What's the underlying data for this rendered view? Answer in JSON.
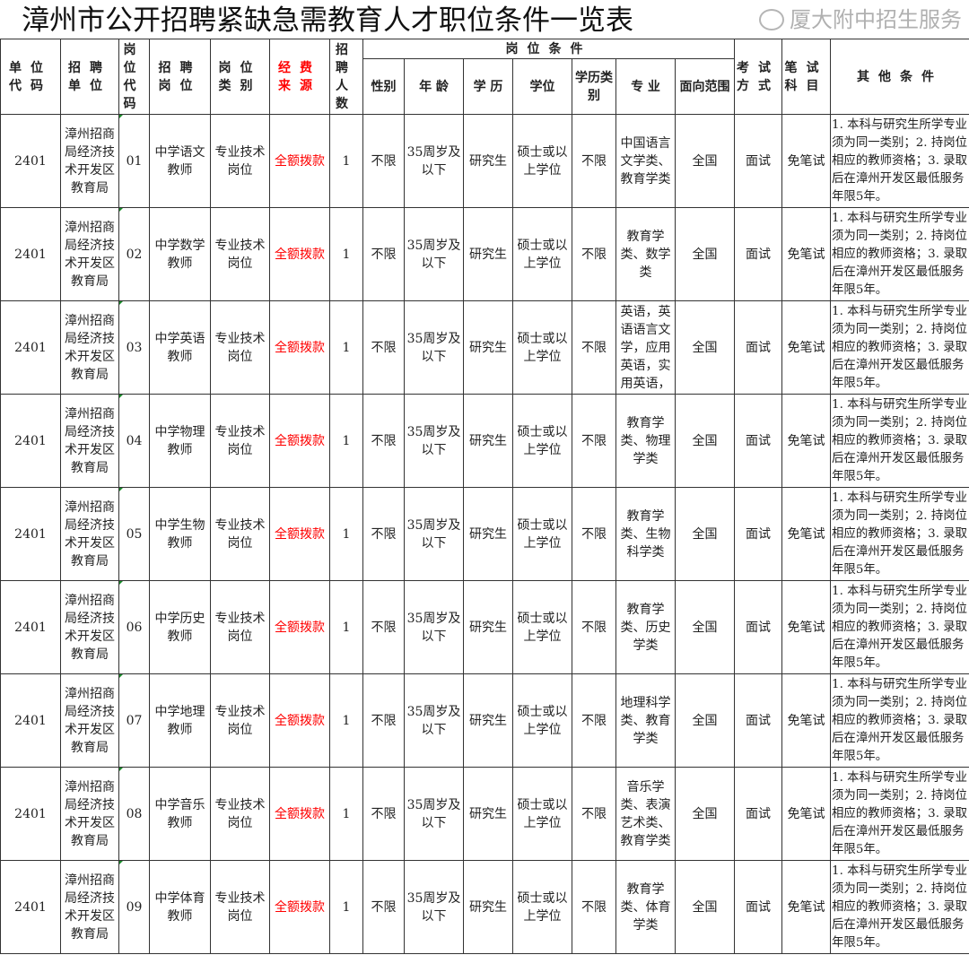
{
  "title": "漳州市公开招聘紧缺急需教育人才职位条件一览表",
  "headers": {
    "unit_code": "单位代码",
    "unit": "招聘单位",
    "post_code": "岗位代码",
    "post": "招聘岗位",
    "post_type": "岗位类别",
    "funding": "经费来源",
    "count": "招聘人数",
    "conditions_group": "岗位条件",
    "gender": "性别",
    "age": "年 龄",
    "education": "学 历",
    "degree": "学位",
    "edu_type": "学历类别",
    "major": "专 业",
    "scope": "面向范围",
    "exam": "考试方式",
    "written": "笔试科目",
    "other": "其他条件"
  },
  "rows": [
    {
      "unit_code": "2401",
      "unit": "漳州招商局经济技术开发区教育局",
      "post_code": "01",
      "post": "中学语文教师",
      "post_type": "专业技术岗位",
      "funding": "全额拨款",
      "count": "1",
      "gender": "不限",
      "age": "35周岁及以下",
      "education": "研究生",
      "degree": "硕士或以上学位",
      "edu_type": "不限",
      "major": "中国语言文学类、教育学类",
      "scope": "全国",
      "exam": "面试",
      "written": "免笔试",
      "other": "1. 本科与研究生所学专业须为同一类别；2. 持岗位相应的教师资格；3. 录取后在漳州开发区最低服务年限5年。"
    },
    {
      "unit_code": "2401",
      "unit": "漳州招商局经济技术开发区教育局",
      "post_code": "02",
      "post": "中学数学教师",
      "post_type": "专业技术岗位",
      "funding": "全额拨款",
      "count": "1",
      "gender": "不限",
      "age": "35周岁及以下",
      "education": "研究生",
      "degree": "硕士或以上学位",
      "edu_type": "不限",
      "major": "教育学类、数学类",
      "scope": "全国",
      "exam": "面试",
      "written": "免笔试",
      "other": "1. 本科与研究生所学专业须为同一类别；2. 持岗位相应的教师资格；3. 录取后在漳州开发区最低服务年限5年。"
    },
    {
      "unit_code": "2401",
      "unit": "漳州招商局经济技术开发区教育局",
      "post_code": "03",
      "post": "中学英语教师",
      "post_type": "专业技术岗位",
      "funding": "全额拨款",
      "count": "1",
      "gender": "不限",
      "age": "35周岁及以下",
      "education": "研究生",
      "degree": "硕士或以上学位",
      "edu_type": "不限",
      "major": "英语，英语语言文学，应用英语，实用英语，",
      "scope": "全国",
      "exam": "面试",
      "written": "免笔试",
      "other": "1. 本科与研究生所学专业须为同一类别；2. 持岗位相应的教师资格；3. 录取后在漳州开发区最低服务年限5年。"
    },
    {
      "unit_code": "2401",
      "unit": "漳州招商局经济技术开发区教育局",
      "post_code": "04",
      "post": "中学物理教师",
      "post_type": "专业技术岗位",
      "funding": "全额拨款",
      "count": "1",
      "gender": "不限",
      "age": "35周岁及以下",
      "education": "研究生",
      "degree": "硕士或以上学位",
      "edu_type": "不限",
      "major": "教育学类、物理学类",
      "scope": "全国",
      "exam": "面试",
      "written": "免笔试",
      "other": "1. 本科与研究生所学专业须为同一类别；2. 持岗位相应的教师资格；3. 录取后在漳州开发区最低服务年限5年。"
    },
    {
      "unit_code": "2401",
      "unit": "漳州招商局经济技术开发区教育局",
      "post_code": "05",
      "post": "中学生物教师",
      "post_type": "专业技术岗位",
      "funding": "全额拨款",
      "count": "1",
      "gender": "不限",
      "age": "35周岁及以下",
      "education": "研究生",
      "degree": "硕士或以上学位",
      "edu_type": "不限",
      "major": "教育学类、生物科学类",
      "scope": "全国",
      "exam": "面试",
      "written": "免笔试",
      "other": "1. 本科与研究生所学专业须为同一类别；2. 持岗位相应的教师资格；3. 录取后在漳州开发区最低服务年限5年。"
    },
    {
      "unit_code": "2401",
      "unit": "漳州招商局经济技术开发区教育局",
      "post_code": "06",
      "post": "中学历史教师",
      "post_type": "专业技术岗位",
      "funding": "全额拨款",
      "count": "1",
      "gender": "不限",
      "age": "35周岁及以下",
      "education": "研究生",
      "degree": "硕士或以上学位",
      "edu_type": "不限",
      "major": "教育学类、历史学类",
      "scope": "全国",
      "exam": "面试",
      "written": "免笔试",
      "other": "1. 本科与研究生所学专业须为同一类别；2. 持岗位相应的教师资格；3. 录取后在漳州开发区最低服务年限5年。"
    },
    {
      "unit_code": "2401",
      "unit": "漳州招商局经济技术开发区教育局",
      "post_code": "07",
      "post": "中学地理教师",
      "post_type": "专业技术岗位",
      "funding": "全额拨款",
      "count": "1",
      "gender": "不限",
      "age": "35周岁及以下",
      "education": "研究生",
      "degree": "硕士或以上学位",
      "edu_type": "不限",
      "major": "地理科学类、教育学类",
      "scope": "全国",
      "exam": "面试",
      "written": "免笔试",
      "other": "1. 本科与研究生所学专业须为同一类别；2. 持岗位相应的教师资格；3. 录取后在漳州开发区最低服务年限5年。"
    },
    {
      "unit_code": "2401",
      "unit": "漳州招商局经济技术开发区教育局",
      "post_code": "08",
      "post": "中学音乐教师",
      "post_type": "专业技术岗位",
      "funding": "全额拨款",
      "count": "1",
      "gender": "不限",
      "age": "35周岁及以下",
      "education": "研究生",
      "degree": "硕士或以上学位",
      "edu_type": "不限",
      "major": "音乐学类、表演艺术类、教育学类",
      "scope": "全国",
      "exam": "面试",
      "written": "免笔试",
      "other": "1. 本科与研究生所学专业须为同一类别；2. 持岗位相应的教师资格；3. 录取后在漳州开发区最低服务年限5年。"
    },
    {
      "unit_code": "2401",
      "unit": "漳州招商局经济技术开发区教育局",
      "post_code": "09",
      "post": "中学体育教师",
      "post_type": "专业技术岗位",
      "funding": "全额拨款",
      "count": "1",
      "gender": "不限",
      "age": "35周岁及以下",
      "education": "研究生",
      "degree": "硕士或以上学位",
      "edu_type": "不限",
      "major": "教育学类、体育学类",
      "scope": "全国",
      "exam": "面试",
      "written": "免笔试",
      "other": "1. 本科与研究生所学专业须为同一类别；2. 持岗位相应的教师资格；3. 录取后在漳州开发区最低服务年限5年。"
    }
  ],
  "colors": {
    "funding_text": "#ff0000",
    "code_marker": "#1a8a2a"
  },
  "watermark": {
    "icon": "wechat-icon",
    "text": "厦大附中招生服务"
  }
}
